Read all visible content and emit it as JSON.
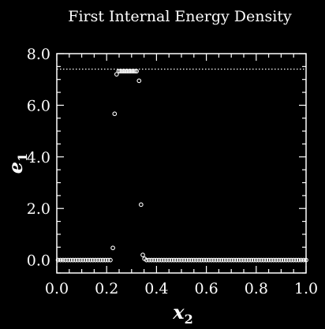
{
  "chart_data": {
    "type": "scatter",
    "title": "First Internal Energy Density",
    "xlabel": "x",
    "xlabel_sub": "2",
    "ylabel": "e",
    "ylabel_sub": "1",
    "xlim": [
      0.0,
      1.0
    ],
    "ylim": [
      -0.5,
      8.0
    ],
    "xticks": [
      0.0,
      0.2,
      0.4,
      0.6,
      0.8,
      1.0
    ],
    "yticks": [
      0.0,
      2.0,
      4.0,
      6.0,
      8.0
    ],
    "xtick_labels": [
      "0.0",
      "0.2",
      "0.4",
      "0.6",
      "0.8",
      "1.0"
    ],
    "ytick_labels": [
      "0.0",
      "2.0",
      "4.0",
      "6.0",
      "8.0"
    ],
    "reference_line": {
      "y": 7.4,
      "style": "dotted"
    },
    "grid": false,
    "series": [
      {
        "marker": "open-circle",
        "points": [
          [
            0.005,
            0.0
          ],
          [
            0.015,
            0.0
          ],
          [
            0.025,
            0.0
          ],
          [
            0.035,
            0.0
          ],
          [
            0.045,
            0.0
          ],
          [
            0.055,
            0.0
          ],
          [
            0.065,
            0.0
          ],
          [
            0.075,
            0.0
          ],
          [
            0.085,
            0.0
          ],
          [
            0.095,
            0.0
          ],
          [
            0.105,
            0.0
          ],
          [
            0.115,
            0.0
          ],
          [
            0.125,
            0.0
          ],
          [
            0.135,
            0.0
          ],
          [
            0.145,
            0.0
          ],
          [
            0.155,
            0.0
          ],
          [
            0.165,
            0.0
          ],
          [
            0.175,
            0.0
          ],
          [
            0.185,
            0.0
          ],
          [
            0.195,
            0.0
          ],
          [
            0.205,
            0.0
          ],
          [
            0.215,
            0.0
          ],
          [
            0.225,
            0.47
          ],
          [
            0.232,
            5.67
          ],
          [
            0.24,
            7.2
          ],
          [
            0.248,
            7.32
          ],
          [
            0.254,
            7.32
          ],
          [
            0.26,
            7.32
          ],
          [
            0.266,
            7.32
          ],
          [
            0.272,
            7.32
          ],
          [
            0.278,
            7.32
          ],
          [
            0.284,
            7.32
          ],
          [
            0.29,
            7.32
          ],
          [
            0.296,
            7.32
          ],
          [
            0.302,
            7.32
          ],
          [
            0.308,
            7.32
          ],
          [
            0.314,
            7.32
          ],
          [
            0.32,
            7.32
          ],
          [
            0.33,
            6.95
          ],
          [
            0.338,
            2.15
          ],
          [
            0.345,
            0.2
          ],
          [
            0.352,
            0.05
          ],
          [
            0.36,
            0.0
          ],
          [
            0.37,
            0.0
          ],
          [
            0.38,
            0.0
          ],
          [
            0.39,
            0.0
          ],
          [
            0.4,
            0.0
          ],
          [
            0.41,
            0.0
          ],
          [
            0.42,
            0.0
          ],
          [
            0.43,
            0.0
          ],
          [
            0.44,
            0.0
          ],
          [
            0.45,
            0.0
          ],
          [
            0.46,
            0.0
          ],
          [
            0.47,
            0.0
          ],
          [
            0.48,
            0.0
          ],
          [
            0.49,
            0.0
          ],
          [
            0.5,
            0.0
          ],
          [
            0.51,
            0.0
          ],
          [
            0.52,
            0.0
          ],
          [
            0.53,
            0.0
          ],
          [
            0.54,
            0.0
          ],
          [
            0.55,
            0.0
          ],
          [
            0.56,
            0.0
          ],
          [
            0.57,
            0.0
          ],
          [
            0.58,
            0.0
          ],
          [
            0.59,
            0.0
          ],
          [
            0.6,
            0.0
          ],
          [
            0.61,
            0.0
          ],
          [
            0.62,
            0.0
          ],
          [
            0.63,
            0.0
          ],
          [
            0.64,
            0.0
          ],
          [
            0.65,
            0.0
          ],
          [
            0.66,
            0.0
          ],
          [
            0.67,
            0.0
          ],
          [
            0.68,
            0.0
          ],
          [
            0.69,
            0.0
          ],
          [
            0.7,
            0.0
          ],
          [
            0.71,
            0.0
          ],
          [
            0.72,
            0.0
          ],
          [
            0.73,
            0.0
          ],
          [
            0.74,
            0.0
          ],
          [
            0.75,
            0.0
          ],
          [
            0.76,
            0.0
          ],
          [
            0.77,
            0.0
          ],
          [
            0.78,
            0.0
          ],
          [
            0.79,
            0.0
          ],
          [
            0.8,
            0.0
          ],
          [
            0.81,
            0.0
          ],
          [
            0.82,
            0.0
          ],
          [
            0.83,
            0.0
          ],
          [
            0.84,
            0.0
          ],
          [
            0.85,
            0.0
          ],
          [
            0.86,
            0.0
          ],
          [
            0.87,
            0.0
          ],
          [
            0.88,
            0.0
          ],
          [
            0.89,
            0.0
          ],
          [
            0.9,
            0.0
          ],
          [
            0.91,
            0.0
          ],
          [
            0.92,
            0.0
          ],
          [
            0.93,
            0.0
          ],
          [
            0.94,
            0.0
          ],
          [
            0.95,
            0.0
          ],
          [
            0.96,
            0.0
          ],
          [
            0.97,
            0.0
          ],
          [
            0.98,
            0.0
          ],
          [
            0.99,
            0.0
          ],
          [
            1.0,
            0.0
          ]
        ]
      }
    ]
  }
}
